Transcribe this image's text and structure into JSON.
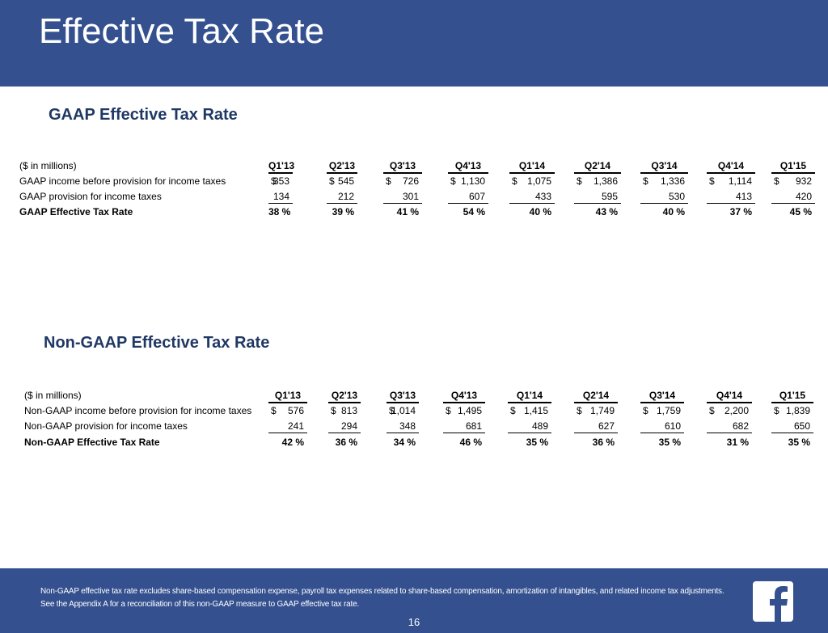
{
  "header": {
    "title": "Effective Tax Rate"
  },
  "sections": [
    {
      "title": "GAAP Effective Tax Rate",
      "unit_label": "($ in millions)",
      "columns": [
        "Q1'13",
        "Q2'13",
        "Q3'13",
        "Q4'13",
        "Q1'14",
        "Q2'14",
        "Q3'14",
        "Q4'14",
        "Q1'15"
      ],
      "rows": [
        {
          "label": "GAAP income before provision for income taxes",
          "currency": "$",
          "values": [
            "353",
            "545",
            "726",
            "1,130",
            "1,075",
            "1,386",
            "1,336",
            "1,114",
            "932"
          ]
        },
        {
          "label": "GAAP provision for income taxes",
          "values": [
            "134",
            "212",
            "301",
            "607",
            "433",
            "595",
            "530",
            "413",
            "420"
          ]
        },
        {
          "label": "GAAP Effective Tax Rate",
          "values": [
            "38 %",
            "39 %",
            "41 %",
            "54 %",
            "40 %",
            "43 %",
            "40 %",
            "37 %",
            "45 %"
          ]
        }
      ]
    },
    {
      "title": "Non-GAAP Effective Tax Rate",
      "unit_label": "($ in millions)",
      "columns": [
        "Q1'13",
        "Q2'13",
        "Q3'13",
        "Q4'13",
        "Q1'14",
        "Q2'14",
        "Q3'14",
        "Q4'14",
        "Q1'15"
      ],
      "rows": [
        {
          "label": "Non-GAAP income before provision for income taxes",
          "currency": "$",
          "values": [
            "576",
            "813",
            "1,014",
            "1,495",
            "1,415",
            "1,749",
            "1,759",
            "2,200",
            "1,839"
          ]
        },
        {
          "label": "Non-GAAP provision for income taxes",
          "values": [
            "241",
            "294",
            "348",
            "681",
            "489",
            "627",
            "610",
            "682",
            "650"
          ]
        },
        {
          "label": "Non-GAAP Effective Tax Rate",
          "values": [
            "42 %",
            "36 %",
            "34 %",
            "46 %",
            "35 %",
            "36 %",
            "35 %",
            "31 %",
            "35 %"
          ]
        }
      ]
    }
  ],
  "footer": {
    "note": "Non-GAAP effective tax rate excludes share-based compensation expense, payroll tax expenses related to share-based compensation, amortization of intangibles, and related income tax adjustments. See the Appendix A for a reconciliation of this non-GAAP measure to GAAP effective tax rate.",
    "page": "16"
  }
}
